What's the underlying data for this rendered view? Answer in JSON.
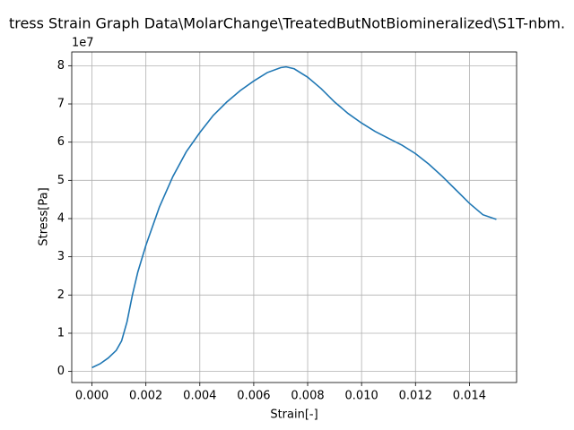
{
  "chart_data": {
    "type": "line",
    "title": "tress Strain Graph Data\\MolarChange\\TreatedButNotBiomineralized\\S1T-nbm.",
    "x_label": "Strain[-]",
    "y_label": "Stress[Pa]",
    "y_offset_label": "1e7",
    "x": [
      0,
      0.0003,
      0.0006,
      0.0009,
      0.0011,
      0.0013,
      0.0015,
      0.0017,
      0.002,
      0.0025,
      0.003,
      0.0035,
      0.004,
      0.0045,
      0.005,
      0.0055,
      0.006,
      0.0065,
      0.007,
      0.0072,
      0.0075,
      0.008,
      0.0085,
      0.009,
      0.0095,
      0.01,
      0.0105,
      0.011,
      0.0115,
      0.012,
      0.0125,
      0.013,
      0.0135,
      0.014,
      0.0145,
      0.015
    ],
    "series": [
      {
        "name": "Stress",
        "color": "#1f77b4",
        "values": [
          1000000,
          2000000,
          3500000,
          5500000,
          8000000,
          13000000,
          20000000,
          26000000,
          33000000,
          43000000,
          51000000,
          57500000,
          62500000,
          67000000,
          70500000,
          73500000,
          76000000,
          78200000,
          79500000,
          79700000,
          79200000,
          77000000,
          74000000,
          70500000,
          67500000,
          65000000,
          62800000,
          61000000,
          59200000,
          57000000,
          54200000,
          51000000,
          47500000,
          44000000,
          41000000,
          39800000
        ]
      }
    ],
    "xlim": [
      -0.00075,
      0.01575
    ],
    "ylim": [
      -2900000,
      83600000
    ],
    "xticks": [
      {
        "value": 0,
        "label": "0.000"
      },
      {
        "value": 0.002,
        "label": "0.002"
      },
      {
        "value": 0.004,
        "label": "0.004"
      },
      {
        "value": 0.006,
        "label": "0.006"
      },
      {
        "value": 0.008,
        "label": "0.008"
      },
      {
        "value": 0.01,
        "label": "0.010"
      },
      {
        "value": 0.012,
        "label": "0.012"
      },
      {
        "value": 0.014,
        "label": "0.014"
      }
    ],
    "yticks": [
      0,
      {
        "value": 10000000,
        "label": "1"
      },
      {
        "value": 20000000,
        "label": "2"
      },
      {
        "value": 30000000,
        "label": "3"
      },
      {
        "value": 40000000,
        "label": "4"
      },
      {
        "value": 50000000,
        "label": "5"
      },
      {
        "value": 60000000,
        "label": "6"
      },
      {
        "value": 70000000,
        "label": "7"
      },
      {
        "value": 80000000,
        "label": "8"
      }
    ],
    "grid": true
  }
}
